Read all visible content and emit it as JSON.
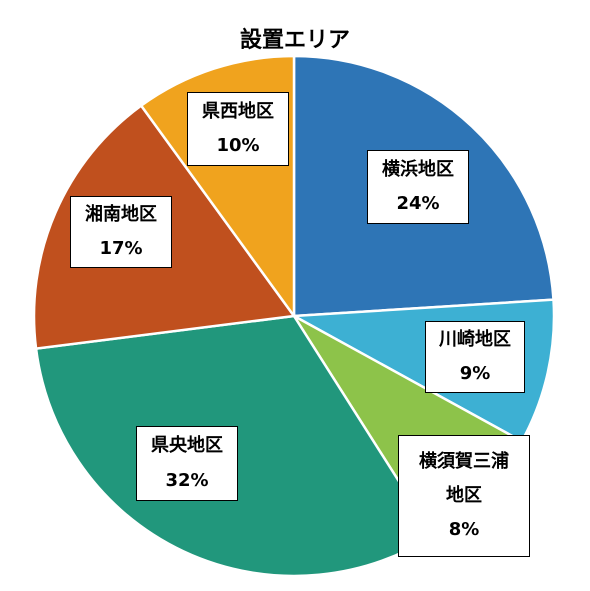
{
  "chart_data": {
    "type": "pie",
    "title": "設置エリア",
    "slices": [
      {
        "label": "横浜地区",
        "value": 24,
        "value_label": "24%",
        "color": "#2E75B6"
      },
      {
        "label": "川崎地区",
        "value": 9,
        "value_label": "9%",
        "color": "#3DB0D3"
      },
      {
        "label": "横須賀三浦\n地区",
        "value": 8,
        "value_label": "8%",
        "color": "#8DC34A"
      },
      {
        "label": "県央地区",
        "value": 32,
        "value_label": "32%",
        "color": "#21977C"
      },
      {
        "label": "湘南地区",
        "value": 17,
        "value_label": "17%",
        "color": "#C0501E"
      },
      {
        "label": "県西地区",
        "value": 10,
        "value_label": "10%",
        "color": "#F0A31E"
      }
    ]
  }
}
